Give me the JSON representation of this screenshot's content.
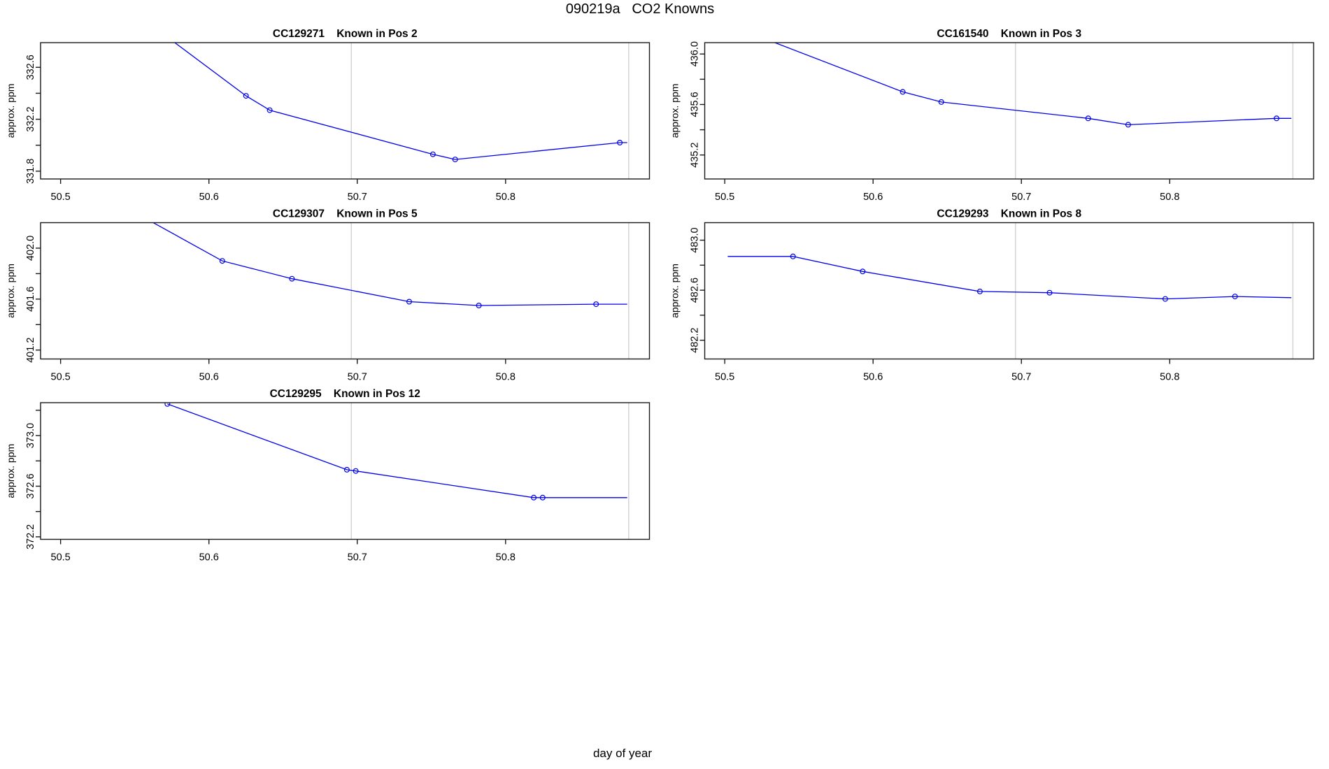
{
  "figure": {
    "main_title": "090219a   CO2 Knowns",
    "x_axis_label": "day of year",
    "y_axis_label": "approx. ppm",
    "line_color": "#0000EE",
    "axis_color": "#1a1a1a",
    "gridline_color": "#D3D3D3",
    "grid_vlines_x": [
      50.696,
      50.883
    ]
  },
  "chart_data": [
    {
      "type": "line",
      "sample_id": "CC129271",
      "position_label": "Known in Pos 2",
      "title": "CC129271    Known in Pos 2",
      "grid": {
        "row": 0,
        "col": 0
      },
      "xlim": [
        50.4865,
        50.897
      ],
      "x_ticks": [
        "50.5",
        "50.6",
        "50.7",
        "50.8"
      ],
      "ylim": [
        331.74,
        332.79
      ],
      "y_ticks": [
        331.8,
        332.0,
        332.2,
        332.4,
        332.6
      ],
      "y_tick_labels": [
        "331.8",
        "",
        "332.2",
        "",
        "332.6"
      ],
      "line": [
        [
          50.55,
          333.02
        ],
        [
          50.625,
          332.38
        ],
        [
          50.641,
          332.27
        ],
        [
          50.751,
          331.93
        ],
        [
          50.766,
          331.89
        ],
        [
          50.877,
          332.02
        ],
        [
          50.882,
          332.02
        ]
      ],
      "markers": [
        [
          50.625,
          332.38
        ],
        [
          50.641,
          332.27
        ],
        [
          50.751,
          331.93
        ],
        [
          50.766,
          331.89
        ],
        [
          50.877,
          332.02
        ]
      ]
    },
    {
      "type": "line",
      "sample_id": "CC161540",
      "position_label": "Known in Pos 3",
      "title": "CC161540    Known in Pos 3",
      "grid": {
        "row": 0,
        "col": 1
      },
      "xlim": [
        50.4865,
        50.897
      ],
      "x_ticks": [
        "50.5",
        "50.6",
        "50.7",
        "50.8"
      ],
      "ylim": [
        435.01,
        436.09
      ],
      "y_ticks": [
        435.2,
        435.4,
        435.6,
        435.8,
        436.0
      ],
      "y_tick_labels": [
        "435.2",
        "",
        "435.6",
        "",
        "436.0"
      ],
      "line": [
        [
          50.505,
          436.22
        ],
        [
          50.62,
          435.7
        ],
        [
          50.646,
          435.62
        ],
        [
          50.745,
          435.49
        ],
        [
          50.772,
          435.44
        ],
        [
          50.872,
          435.49
        ],
        [
          50.882,
          435.49
        ]
      ],
      "markers": [
        [
          50.62,
          435.7
        ],
        [
          50.646,
          435.62
        ],
        [
          50.745,
          435.49
        ],
        [
          50.772,
          435.44
        ],
        [
          50.872,
          435.49
        ]
      ]
    },
    {
      "type": "line",
      "sample_id": "CC129307",
      "position_label": "Known in Pos 5",
      "title": "CC129307    Known in Pos 5",
      "grid": {
        "row": 1,
        "col": 0
      },
      "xlim": [
        50.4865,
        50.897
      ],
      "x_ticks": [
        "50.5",
        "50.6",
        "50.7",
        "50.8"
      ],
      "ylim": [
        401.13,
        402.2
      ],
      "y_ticks": [
        401.2,
        401.4,
        401.6,
        401.8,
        402.0
      ],
      "y_tick_labels": [
        "401.2",
        "",
        "401.6",
        "",
        "402.0"
      ],
      "line": [
        [
          50.55,
          402.28
        ],
        [
          50.609,
          401.9
        ],
        [
          50.656,
          401.76
        ],
        [
          50.735,
          401.58
        ],
        [
          50.782,
          401.55
        ],
        [
          50.861,
          401.56
        ],
        [
          50.882,
          401.56
        ]
      ],
      "markers": [
        [
          50.609,
          401.9
        ],
        [
          50.656,
          401.76
        ],
        [
          50.735,
          401.58
        ],
        [
          50.782,
          401.55
        ],
        [
          50.861,
          401.56
        ]
      ]
    },
    {
      "type": "line",
      "sample_id": "CC129293",
      "position_label": "Known in Pos 8",
      "title": "CC129293    Known in Pos 8",
      "grid": {
        "row": 1,
        "col": 1
      },
      "xlim": [
        50.4865,
        50.897
      ],
      "x_ticks": [
        "50.5",
        "50.6",
        "50.7",
        "50.8"
      ],
      "ylim": [
        482.05,
        483.14
      ],
      "y_ticks": [
        482.2,
        482.4,
        482.6,
        482.8,
        483.0
      ],
      "y_tick_labels": [
        "482.2",
        "",
        "482.6",
        "",
        "483.0"
      ],
      "line": [
        [
          50.502,
          482.87
        ],
        [
          50.546,
          482.87
        ],
        [
          50.593,
          482.75
        ],
        [
          50.672,
          482.59
        ],
        [
          50.719,
          482.58
        ],
        [
          50.797,
          482.53
        ],
        [
          50.844,
          482.55
        ],
        [
          50.882,
          482.54
        ]
      ],
      "markers": [
        [
          50.546,
          482.87
        ],
        [
          50.593,
          482.75
        ],
        [
          50.672,
          482.59
        ],
        [
          50.719,
          482.58
        ],
        [
          50.797,
          482.53
        ],
        [
          50.844,
          482.55
        ]
      ]
    },
    {
      "type": "line",
      "sample_id": "CC129295",
      "position_label": "Known in Pos 12",
      "title": "CC129295    Known in Pos 12",
      "grid": {
        "row": 2,
        "col": 0
      },
      "xlim": [
        50.4865,
        50.897
      ],
      "x_ticks": [
        "50.5",
        "50.6",
        "50.7",
        "50.8"
      ],
      "ylim": [
        372.18,
        373.26
      ],
      "y_ticks": [
        372.2,
        372.4,
        372.6,
        372.8,
        373.0,
        373.2
      ],
      "y_tick_labels": [
        "372.2",
        "",
        "372.6",
        "",
        "373.0",
        ""
      ],
      "line": [
        [
          50.572,
          373.25
        ],
        [
          50.693,
          372.73
        ],
        [
          50.699,
          372.72
        ],
        [
          50.819,
          372.51
        ],
        [
          50.825,
          372.51
        ],
        [
          50.882,
          372.51
        ]
      ],
      "markers": [
        [
          50.572,
          373.25
        ],
        [
          50.693,
          372.73
        ],
        [
          50.699,
          372.72
        ],
        [
          50.819,
          372.51
        ],
        [
          50.825,
          372.51
        ]
      ]
    }
  ]
}
